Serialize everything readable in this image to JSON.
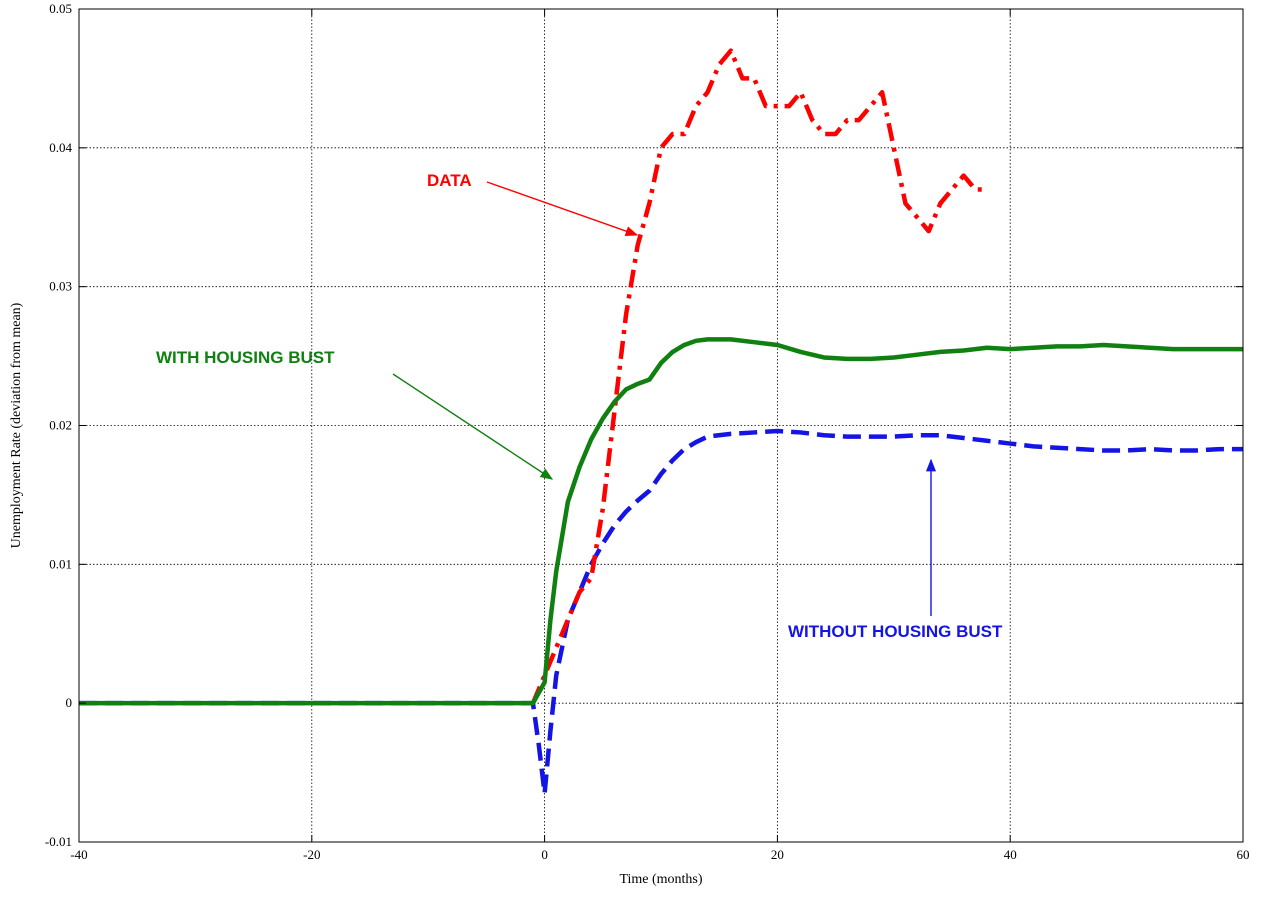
{
  "chart_data": {
    "type": "line",
    "title": "",
    "xlabel": "Time (months)",
    "ylabel": "Unemployment Rate (deviation from mean)",
    "xlim": [
      -40,
      60
    ],
    "ylim": [
      -0.01,
      0.05
    ],
    "xticks": [
      -40,
      -20,
      0,
      20,
      40,
      60
    ],
    "xtick_labels": [
      "-40",
      "-20",
      "0",
      "20",
      "40",
      "60"
    ],
    "yticks": [
      -0.01,
      0,
      0.01,
      0.02,
      0.03,
      0.04,
      0.05
    ],
    "ytick_labels": [
      "-0.01",
      "0",
      "0.01",
      "0.02",
      "0.03",
      "0.04",
      "0.05"
    ],
    "grid": true,
    "legend": "none",
    "series": [
      {
        "name": "DATA",
        "color": "#ff0000",
        "style": "dashdot",
        "x": [
          -1,
          0,
          1,
          2,
          3,
          4,
          5,
          6,
          7,
          8,
          9,
          10,
          11,
          12,
          13,
          14,
          15,
          16,
          17,
          18,
          19,
          20,
          21,
          22,
          23,
          24,
          25,
          26,
          27,
          28,
          29,
          30,
          31,
          32,
          33,
          34,
          35,
          36,
          37,
          38
        ],
        "y": [
          0.0,
          0.002,
          0.004,
          0.006,
          0.008,
          0.009,
          0.014,
          0.021,
          0.028,
          0.033,
          0.036,
          0.04,
          0.041,
          0.041,
          0.043,
          0.044,
          0.046,
          0.047,
          0.045,
          0.045,
          0.043,
          0.043,
          0.043,
          0.044,
          0.042,
          0.041,
          0.041,
          0.042,
          0.042,
          0.043,
          0.044,
          0.04,
          0.036,
          0.035,
          0.034,
          0.036,
          0.037,
          0.038,
          0.037,
          0.037
        ]
      },
      {
        "name": "WITH HOUSING BUST",
        "color": "#108010",
        "style": "solid",
        "x": [
          -40,
          -1,
          0,
          0.5,
          1,
          1.5,
          2,
          3,
          4,
          5,
          6,
          7,
          8,
          9,
          10,
          11,
          12,
          13,
          14,
          16,
          18,
          20,
          22,
          24,
          26,
          28,
          30,
          32,
          34,
          36,
          38,
          40,
          42,
          44,
          46,
          48,
          50,
          52,
          54,
          56,
          58,
          60
        ],
        "y": [
          0,
          0,
          0.0015,
          0.006,
          0.0095,
          0.012,
          0.0145,
          0.017,
          0.019,
          0.0205,
          0.0217,
          0.0226,
          0.023,
          0.0233,
          0.0245,
          0.0253,
          0.0258,
          0.0261,
          0.0262,
          0.0262,
          0.026,
          0.0258,
          0.0253,
          0.0249,
          0.0248,
          0.0248,
          0.0249,
          0.0251,
          0.0253,
          0.0254,
          0.0256,
          0.0255,
          0.0256,
          0.0257,
          0.0257,
          0.0258,
          0.0257,
          0.0256,
          0.0255,
          0.0255,
          0.0255,
          0.0255
        ]
      },
      {
        "name": "WITHOUT HOUSING BUST",
        "color": "#1414e6",
        "style": "dashed",
        "x": [
          -40,
          -1,
          -0.5,
          0,
          0.5,
          1,
          1.5,
          2,
          3,
          4,
          5,
          6,
          7,
          8,
          9,
          10,
          11,
          12,
          13,
          14,
          16,
          18,
          20,
          22,
          24,
          26,
          28,
          30,
          32,
          34,
          36,
          38,
          40,
          42,
          44,
          46,
          48,
          50,
          52,
          54,
          56,
          58,
          60
        ],
        "y": [
          0,
          0,
          -0.003,
          -0.0065,
          -0.002,
          0.002,
          0.004,
          0.006,
          0.008,
          0.01,
          0.0115,
          0.0128,
          0.0138,
          0.0146,
          0.0153,
          0.0165,
          0.0175,
          0.0183,
          0.0188,
          0.0192,
          0.0194,
          0.0195,
          0.0196,
          0.0195,
          0.0193,
          0.0192,
          0.0192,
          0.0192,
          0.0193,
          0.0193,
          0.0191,
          0.0189,
          0.0187,
          0.0185,
          0.0184,
          0.0183,
          0.0182,
          0.0182,
          0.0183,
          0.0182,
          0.0182,
          0.0183,
          0.0183
        ]
      }
    ],
    "annotations": [
      {
        "text": "DATA",
        "color": "#ff0000"
      },
      {
        "text": "WITH HOUSING BUST",
        "color": "#108010"
      },
      {
        "text": "WITHOUT HOUSING BUST",
        "color": "#1414e6"
      }
    ]
  }
}
